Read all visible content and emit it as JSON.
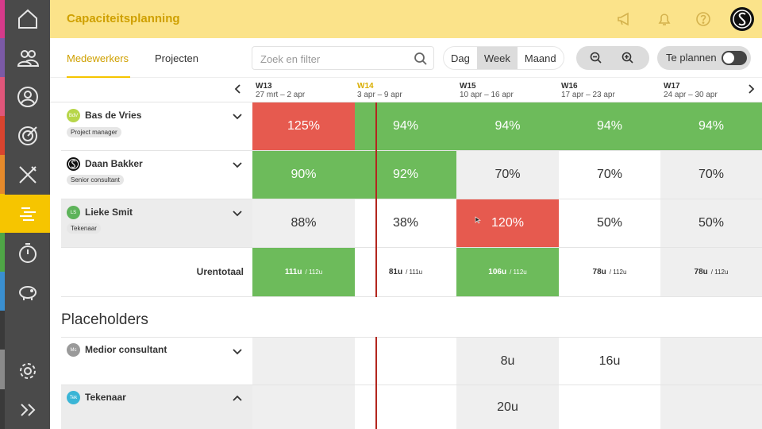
{
  "header": {
    "title": "Capaciteitsplanning"
  },
  "toolbar": {
    "tabs": [
      {
        "label": "Medewerkers",
        "active": true
      },
      {
        "label": "Projecten",
        "active": false
      }
    ],
    "search_placeholder": "Zoek en filter",
    "view_modes": [
      {
        "label": "Dag",
        "active": false
      },
      {
        "label": "Week",
        "active": true
      },
      {
        "label": "Maand",
        "active": false
      }
    ],
    "toggle_label": "Te plannen",
    "toggle_on": false
  },
  "weeks": [
    {
      "code": "W13",
      "range": "27 mrt – 2 apr",
      "current": false
    },
    {
      "code": "W14",
      "range": "3 apr – 9 apr",
      "current": true
    },
    {
      "code": "W15",
      "range": "10 apr – 16 apr",
      "current": false
    },
    {
      "code": "W16",
      "range": "17 apr – 23 apr",
      "current": false
    },
    {
      "code": "W17",
      "range": "24 apr – 30 apr",
      "current": false
    }
  ],
  "employees": [
    {
      "name": "Bas de Vries",
      "initials": "BdV",
      "role": "Project manager",
      "values": [
        "125%",
        "94%",
        "94%",
        "94%",
        "94%"
      ],
      "status": [
        "red",
        "green",
        "green",
        "green",
        "green"
      ]
    },
    {
      "name": "Daan Bakker",
      "initials": "S",
      "role": "Senior consultant",
      "values": [
        "90%",
        "92%",
        "70%",
        "70%",
        "70%"
      ],
      "status": [
        "green",
        "green",
        "grey",
        "white",
        "grey"
      ]
    },
    {
      "name": "Lieke Smit",
      "initials": "LS",
      "role": "Tekenaar",
      "values": [
        "88%",
        "38%",
        "120%",
        "50%",
        "50%"
      ],
      "status": [
        "grey",
        "white",
        "red",
        "white",
        "grey"
      ]
    }
  ],
  "totals": {
    "label": "Urentotaal",
    "values": [
      {
        "hours": "111u",
        "capacity": "/ 112u",
        "status": "green"
      },
      {
        "hours": "81u",
        "capacity": "/ 111u",
        "status": "white"
      },
      {
        "hours": "106u",
        "capacity": "/ 112u",
        "status": "green"
      },
      {
        "hours": "78u",
        "capacity": "/ 112u",
        "status": "white"
      },
      {
        "hours": "78u",
        "capacity": "/ 112u",
        "status": "grey"
      }
    ]
  },
  "placeholders": {
    "title": "Placeholders",
    "rows": [
      {
        "name": "Medior consultant",
        "initials": "Mc",
        "values": [
          "",
          "",
          "8u",
          "16u",
          ""
        ],
        "status": [
          "grey",
          "white",
          "grey",
          "white",
          "grey"
        ],
        "expanded": false
      },
      {
        "name": "Tekenaar",
        "initials": "Tek",
        "values": [
          "",
          "",
          "20u",
          "",
          ""
        ],
        "status": [
          "grey",
          "white",
          "grey",
          "white",
          "grey"
        ],
        "expanded": true
      }
    ]
  },
  "colors": {
    "accent": "#f6c500",
    "green": "#6dbb5b",
    "red": "#e65a4f",
    "sidebar": "#4a4a4a"
  },
  "nav_icons": [
    "home-icon",
    "team-icon",
    "user-icon",
    "target-icon",
    "tools-icon",
    "planning-icon",
    "stopwatch-icon",
    "piggybank-icon",
    "gear-icon",
    "expand-icon"
  ]
}
